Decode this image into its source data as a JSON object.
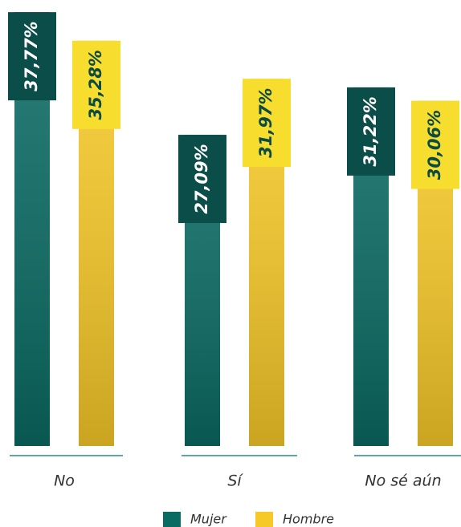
{
  "chart_data": {
    "type": "bar",
    "categories": [
      "No",
      "Sí",
      "No sé aún"
    ],
    "series": [
      {
        "name": "Mujer",
        "color": "#0a6b63",
        "values": [
          37.77,
          27.09,
          31.22
        ],
        "value_labels": [
          "37,77%",
          "27,09%",
          "31,22%"
        ]
      },
      {
        "name": "Hombre",
        "color": "#f7c928",
        "values": [
          35.28,
          31.97,
          30.06
        ],
        "value_labels": [
          "35,28%",
          "31,97%",
          "30,06%"
        ]
      }
    ]
  }
}
